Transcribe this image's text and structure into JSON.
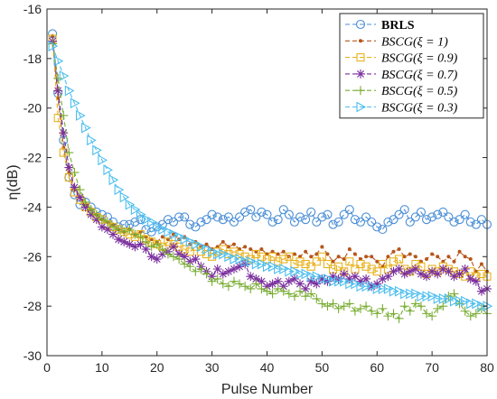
{
  "chart_data": {
    "type": "line",
    "title": "",
    "xlabel": "Pulse Number",
    "ylabel": "η(dB)",
    "xlim": [
      0,
      80
    ],
    "ylim": [
      -30,
      -16
    ],
    "xticks": [
      0,
      10,
      20,
      30,
      40,
      50,
      60,
      70,
      80
    ],
    "yticks": [
      -16,
      -18,
      -20,
      -22,
      -24,
      -26,
      -28,
      -30
    ],
    "grid": false,
    "legend_position": "top-right",
    "series": [
      {
        "name": "BRLS",
        "color": "#4b8fd6",
        "marker": "circle",
        "x": [
          1,
          2,
          3,
          4,
          5,
          6,
          7,
          8,
          9,
          10,
          11,
          12,
          13,
          14,
          15,
          16,
          17,
          18,
          19,
          20,
          21,
          22,
          23,
          24,
          25,
          26,
          27,
          28,
          29,
          30,
          31,
          32,
          33,
          34,
          35,
          36,
          37,
          38,
          39,
          40,
          41,
          42,
          43,
          44,
          45,
          46,
          47,
          48,
          49,
          50,
          51,
          52,
          53,
          54,
          55,
          56,
          57,
          58,
          59,
          60,
          61,
          62,
          63,
          64,
          65,
          66,
          67,
          68,
          69,
          70,
          71,
          72,
          73,
          74,
          75,
          76,
          77,
          78,
          79,
          80
        ],
        "y": [
          -17.0,
          -19.4,
          -21.3,
          -22.8,
          -23.5,
          -23.9,
          -23.8,
          -24.0,
          -24.2,
          -24.3,
          -24.4,
          -24.6,
          -24.8,
          -24.7,
          -24.7,
          -24.6,
          -24.5,
          -24.9,
          -25.0,
          -24.8,
          -24.7,
          -24.5,
          -24.6,
          -24.4,
          -24.4,
          -24.7,
          -24.8,
          -24.6,
          -24.5,
          -24.3,
          -24.4,
          -24.5,
          -24.4,
          -24.6,
          -24.4,
          -24.2,
          -24.1,
          -24.4,
          -24.2,
          -24.3,
          -24.6,
          -24.5,
          -24.1,
          -24.3,
          -24.6,
          -24.4,
          -24.5,
          -24.2,
          -24.6,
          -24.4,
          -24.3,
          -24.7,
          -24.6,
          -24.3,
          -24.1,
          -24.5,
          -24.6,
          -24.4,
          -24.6,
          -24.8,
          -24.9,
          -24.6,
          -24.5,
          -24.3,
          -24.1,
          -24.6,
          -24.4,
          -24.2,
          -24.5,
          -24.4,
          -24.3,
          -24.2,
          -24.4,
          -24.6,
          -24.5,
          -24.3,
          -24.6,
          -24.7,
          -24.5,
          -24.7
        ]
      },
      {
        "name": "BSCG(ξ = 1)",
        "color": "#b5561c",
        "marker": "dot",
        "x": [
          1,
          2,
          3,
          4,
          5,
          6,
          7,
          8,
          9,
          10,
          11,
          12,
          13,
          14,
          15,
          16,
          17,
          18,
          19,
          20,
          21,
          22,
          23,
          24,
          25,
          26,
          27,
          28,
          29,
          30,
          31,
          32,
          33,
          34,
          35,
          36,
          37,
          38,
          39,
          40,
          41,
          42,
          43,
          44,
          45,
          46,
          47,
          48,
          49,
          50,
          51,
          52,
          53,
          54,
          55,
          56,
          57,
          58,
          59,
          60,
          61,
          62,
          63,
          64,
          65,
          66,
          67,
          68,
          69,
          70,
          71,
          72,
          73,
          74,
          75,
          76,
          77,
          78,
          79,
          80
        ],
        "y": [
          -17.1,
          -19.6,
          -21.6,
          -22.6,
          -23.3,
          -23.6,
          -23.9,
          -24.1,
          -24.3,
          -24.5,
          -24.6,
          -24.7,
          -24.9,
          -25.0,
          -24.9,
          -25.1,
          -25.0,
          -25.2,
          -25.3,
          -25.4,
          -25.2,
          -25.3,
          -25.1,
          -25.3,
          -25.2,
          -25.5,
          -25.4,
          -25.6,
          -25.5,
          -25.7,
          -25.6,
          -25.4,
          -25.6,
          -25.5,
          -25.7,
          -25.6,
          -25.7,
          -25.8,
          -25.7,
          -25.9,
          -25.8,
          -25.9,
          -25.8,
          -26.0,
          -25.9,
          -26.0,
          -25.8,
          -26.0,
          -25.9,
          -25.6,
          -25.9,
          -26.2,
          -26.0,
          -26.1,
          -25.7,
          -25.9,
          -26.1,
          -26.0,
          -26.0,
          -26.2,
          -26.4,
          -26.0,
          -25.8,
          -25.7,
          -26.0,
          -25.9,
          -26.0,
          -26.2,
          -26.1,
          -25.9,
          -26.0,
          -26.2,
          -26.0,
          -26.2,
          -25.8,
          -26.0,
          -26.1,
          -26.6,
          -26.3,
          -26.6
        ]
      },
      {
        "name": "BSCG(ξ = 0.9)",
        "color": "#e8b220",
        "marker": "square",
        "x": [
          1,
          2,
          3,
          4,
          5,
          6,
          7,
          8,
          9,
          10,
          11,
          12,
          13,
          14,
          15,
          16,
          17,
          18,
          19,
          20,
          21,
          22,
          23,
          24,
          25,
          26,
          27,
          28,
          29,
          30,
          31,
          32,
          33,
          34,
          35,
          36,
          37,
          38,
          39,
          40,
          41,
          42,
          43,
          44,
          45,
          46,
          47,
          48,
          49,
          50,
          51,
          52,
          53,
          54,
          55,
          56,
          57,
          58,
          59,
          60,
          61,
          62,
          63,
          64,
          65,
          66,
          67,
          68,
          69,
          70,
          71,
          72,
          73,
          74,
          75,
          76,
          77,
          78,
          79,
          80
        ],
        "y": [
          -17.2,
          -20.4,
          -21.8,
          -22.8,
          -23.4,
          -23.7,
          -24.0,
          -24.2,
          -24.4,
          -24.5,
          -24.7,
          -24.8,
          -24.9,
          -25.0,
          -25.1,
          -25.2,
          -25.1,
          -25.3,
          -25.4,
          -25.5,
          -25.6,
          -25.4,
          -25.5,
          -25.6,
          -25.7,
          -25.8,
          -25.6,
          -25.8,
          -25.9,
          -26.0,
          -25.8,
          -25.7,
          -25.9,
          -25.8,
          -25.9,
          -26.0,
          -26.1,
          -25.9,
          -26.0,
          -26.1,
          -26.0,
          -26.2,
          -26.1,
          -26.0,
          -26.3,
          -26.2,
          -26.3,
          -26.4,
          -26.2,
          -26.0,
          -26.3,
          -26.5,
          -26.4,
          -26.6,
          -26.2,
          -26.5,
          -26.3,
          -26.4,
          -26.5,
          -26.6,
          -26.3,
          -26.5,
          -26.2,
          -26.1,
          -26.5,
          -26.6,
          -26.3,
          -26.4,
          -26.7,
          -26.5,
          -26.6,
          -26.4,
          -26.5,
          -26.6,
          -26.7,
          -26.8,
          -26.6,
          -26.8,
          -26.7,
          -26.8
        ]
      },
      {
        "name": "BSCG(ξ = 0.7)",
        "color": "#7b2f9e",
        "marker": "star",
        "x": [
          1,
          2,
          3,
          4,
          5,
          6,
          7,
          8,
          9,
          10,
          11,
          12,
          13,
          14,
          15,
          16,
          17,
          18,
          19,
          20,
          21,
          22,
          23,
          24,
          25,
          26,
          27,
          28,
          29,
          30,
          31,
          32,
          33,
          34,
          35,
          36,
          37,
          38,
          39,
          40,
          41,
          42,
          43,
          44,
          45,
          46,
          47,
          48,
          49,
          50,
          51,
          52,
          53,
          54,
          55,
          56,
          57,
          58,
          59,
          60,
          61,
          62,
          63,
          64,
          65,
          66,
          67,
          68,
          69,
          70,
          71,
          72,
          73,
          74,
          75,
          76,
          77,
          78,
          79,
          80
        ],
        "y": [
          -17.3,
          -19.3,
          -21.0,
          -22.4,
          -23.2,
          -23.6,
          -24.0,
          -24.3,
          -24.5,
          -24.8,
          -24.9,
          -25.1,
          -25.3,
          -25.4,
          -25.5,
          -25.6,
          -25.5,
          -25.7,
          -26.0,
          -26.1,
          -25.9,
          -25.8,
          -25.6,
          -25.9,
          -26.0,
          -26.2,
          -26.1,
          -26.4,
          -26.6,
          -26.8,
          -26.5,
          -26.7,
          -26.6,
          -26.5,
          -26.4,
          -26.3,
          -26.8,
          -26.9,
          -27.0,
          -27.2,
          -27.1,
          -27.0,
          -27.2,
          -27.0,
          -26.9,
          -27.1,
          -27.3,
          -27.0,
          -27.1,
          -26.9,
          -27.0,
          -26.8,
          -26.9,
          -26.7,
          -26.9,
          -26.8,
          -27.0,
          -26.9,
          -27.2,
          -27.1,
          -26.9,
          -26.8,
          -26.6,
          -26.5,
          -26.7,
          -26.6,
          -26.5,
          -26.7,
          -26.8,
          -26.6,
          -26.7,
          -26.5,
          -26.6,
          -26.8,
          -26.7,
          -26.5,
          -26.9,
          -27.0,
          -27.4,
          -27.3
        ]
      },
      {
        "name": "BSCG(ξ = 0.5)",
        "color": "#77ac30",
        "marker": "plus",
        "x": [
          1,
          2,
          3,
          4,
          5,
          6,
          7,
          8,
          9,
          10,
          11,
          12,
          13,
          14,
          15,
          16,
          17,
          18,
          19,
          20,
          21,
          22,
          23,
          24,
          25,
          26,
          27,
          28,
          29,
          30,
          31,
          32,
          33,
          34,
          35,
          36,
          37,
          38,
          39,
          40,
          41,
          42,
          43,
          44,
          45,
          46,
          47,
          48,
          49,
          50,
          51,
          52,
          53,
          54,
          55,
          56,
          57,
          58,
          59,
          60,
          61,
          62,
          63,
          64,
          65,
          66,
          67,
          68,
          69,
          70,
          71,
          72,
          73,
          74,
          75,
          76,
          77,
          78,
          79,
          80
        ],
        "y": [
          -17.4,
          -18.8,
          -20.3,
          -21.8,
          -22.6,
          -23.3,
          -23.8,
          -24.1,
          -24.3,
          -24.5,
          -24.6,
          -24.8,
          -24.9,
          -25.0,
          -24.9,
          -25.1,
          -25.2,
          -25.4,
          -25.6,
          -25.5,
          -25.7,
          -25.9,
          -26.0,
          -26.1,
          -26.3,
          -26.4,
          -26.6,
          -26.5,
          -26.7,
          -27.0,
          -26.9,
          -27.1,
          -27.2,
          -27.0,
          -27.1,
          -27.2,
          -27.3,
          -27.1,
          -27.3,
          -27.4,
          -27.5,
          -27.3,
          -27.4,
          -27.5,
          -27.6,
          -27.4,
          -27.6,
          -27.5,
          -27.7,
          -27.9,
          -28.0,
          -27.9,
          -28.1,
          -28.0,
          -27.9,
          -28.2,
          -28.1,
          -28.0,
          -28.2,
          -28.3,
          -28.1,
          -28.4,
          -28.3,
          -28.5,
          -28.0,
          -28.2,
          -27.9,
          -28.0,
          -28.3,
          -28.4,
          -28.1,
          -28.0,
          -27.6,
          -27.5,
          -27.9,
          -28.2,
          -28.4,
          -28.3,
          -28.1,
          -28.3
        ]
      },
      {
        "name": "BSCG(ξ = 0.3)",
        "color": "#4dbeee",
        "marker": "triangle-right",
        "x": [
          1,
          2,
          3,
          4,
          5,
          6,
          7,
          8,
          9,
          10,
          11,
          12,
          13,
          14,
          15,
          16,
          17,
          18,
          19,
          20,
          21,
          22,
          23,
          24,
          25,
          26,
          27,
          28,
          29,
          30,
          31,
          32,
          33,
          34,
          35,
          36,
          37,
          38,
          39,
          40,
          41,
          42,
          43,
          44,
          45,
          46,
          47,
          48,
          49,
          50,
          51,
          52,
          53,
          54,
          55,
          56,
          57,
          58,
          59,
          60,
          61,
          62,
          63,
          64,
          65,
          66,
          67,
          68,
          69,
          70,
          71,
          72,
          73,
          74,
          75,
          76,
          77,
          78,
          79,
          80
        ],
        "y": [
          -17.5,
          -18.1,
          -18.7,
          -19.3,
          -19.8,
          -20.3,
          -20.8,
          -21.3,
          -21.7,
          -22.1,
          -22.5,
          -22.9,
          -23.3,
          -23.6,
          -23.9,
          -24.1,
          -24.3,
          -24.5,
          -24.6,
          -24.8,
          -24.9,
          -25.0,
          -25.1,
          -25.2,
          -25.3,
          -25.4,
          -25.5,
          -25.6,
          -25.7,
          -25.8,
          -25.9,
          -25.9,
          -26.0,
          -26.1,
          -26.1,
          -26.2,
          -26.2,
          -26.3,
          -26.3,
          -26.4,
          -26.4,
          -26.5,
          -26.5,
          -26.6,
          -26.6,
          -26.7,
          -26.7,
          -26.8,
          -26.8,
          -26.9,
          -26.9,
          -27.0,
          -27.0,
          -27.0,
          -27.1,
          -27.1,
          -27.2,
          -27.2,
          -27.2,
          -27.3,
          -27.3,
          -27.3,
          -27.4,
          -27.4,
          -27.5,
          -27.5,
          -27.5,
          -27.6,
          -27.6,
          -27.6,
          -27.7,
          -27.7,
          -27.7,
          -27.8,
          -27.8,
          -27.8,
          -27.9,
          -27.9,
          -28.0,
          -28.0
        ]
      }
    ]
  }
}
